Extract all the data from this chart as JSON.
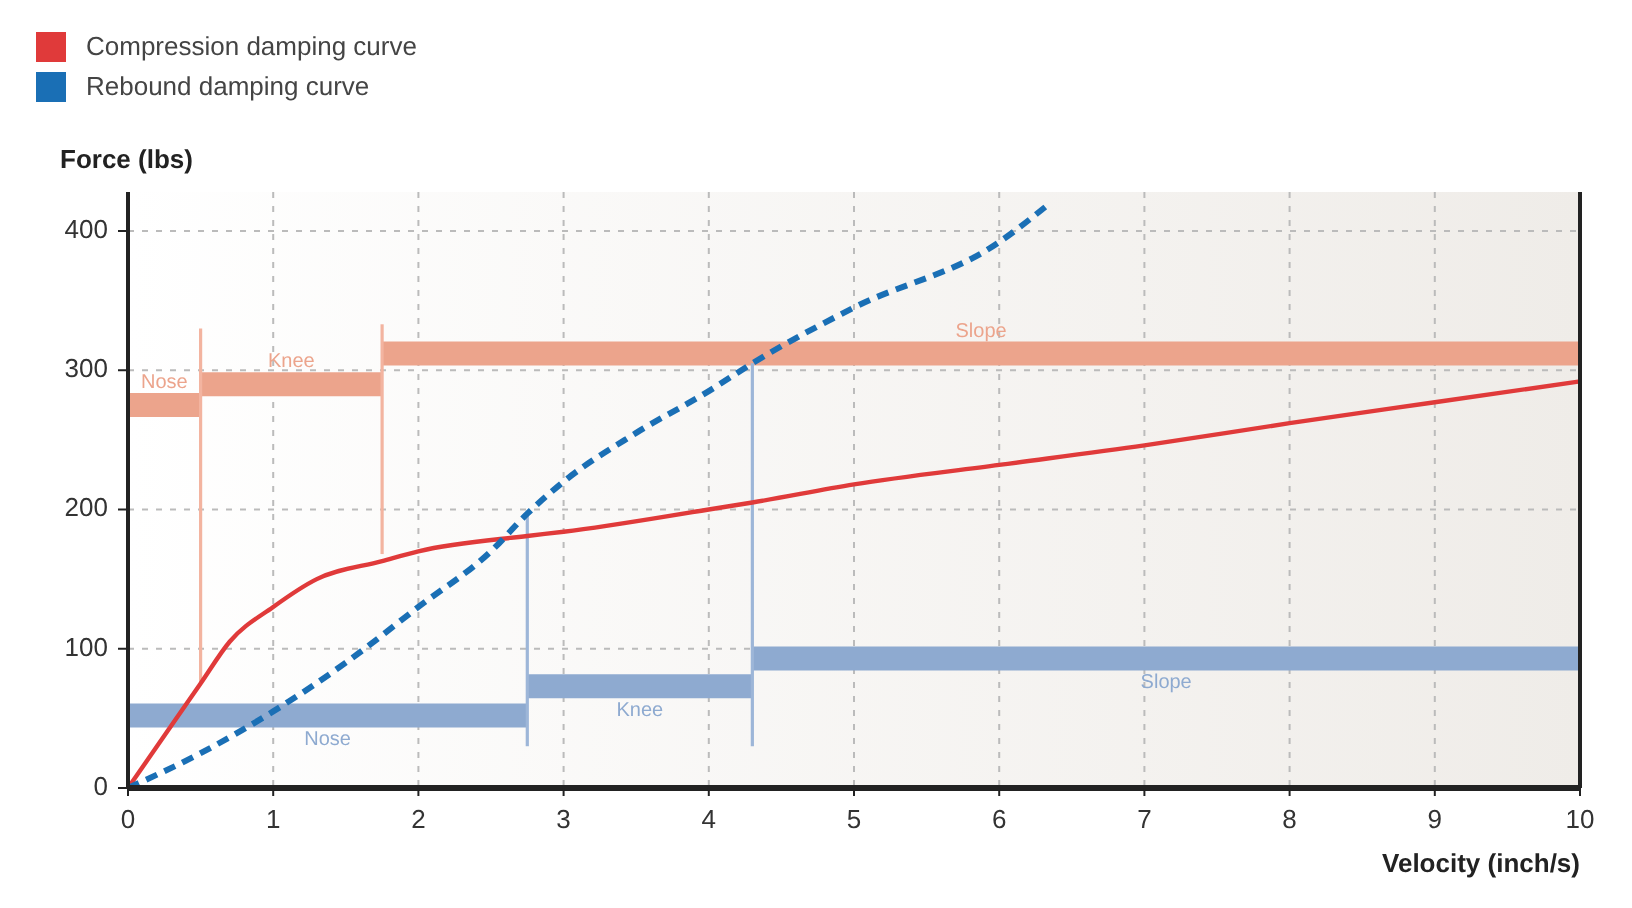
{
  "chart_data": {
    "type": "line",
    "xlabel": "Velocity (inch/s)",
    "ylabel": "Force (lbs)",
    "xlim": [
      0,
      10
    ],
    "ylim": [
      0,
      428
    ],
    "xticks": [
      0,
      1,
      2,
      3,
      4,
      5,
      6,
      7,
      8,
      9,
      10
    ],
    "yticks": [
      0,
      100,
      200,
      300,
      400
    ],
    "grid": true,
    "legend": "top left",
    "marker": "none",
    "series": [
      {
        "name": "Compression damping curve",
        "color": "#e03a3a",
        "line_style": "solid",
        "x": [
          0,
          0.3,
          0.5,
          0.7,
          1,
          1.3,
          1.75,
          2,
          2.75,
          3,
          4,
          4.3,
          5,
          6,
          7,
          8,
          9,
          10
        ],
        "values": [
          0,
          45,
          75,
          105,
          130,
          150,
          163,
          170,
          181,
          184,
          200,
          205,
          218,
          232,
          246,
          262,
          277,
          292
        ]
      },
      {
        "name": "Rebound damping curve",
        "color": "#1a6fb5",
        "line_style": "dashed",
        "x": [
          0,
          0.5,
          1,
          1.5,
          2,
          2.5,
          2.75,
          3,
          3.5,
          4,
          4.3,
          5,
          6,
          6.35
        ],
        "values": [
          0,
          25,
          55,
          90,
          130,
          170,
          197,
          220,
          255,
          285,
          305,
          345,
          392,
          420
        ]
      },
      {
        "type": "step",
        "name": "Nose",
        "color": "#eca48c",
        "x": [
          0,
          0.5
        ],
        "values": [
          275,
          275
        ]
      },
      {
        "type": "step",
        "name": "Knee",
        "color": "#eca48c",
        "x": [
          0.5,
          1.75
        ],
        "values": [
          290,
          290
        ]
      },
      {
        "type": "step",
        "name": "Slope",
        "color": "#eca48c",
        "x": [
          1.75,
          10
        ],
        "values": [
          312,
          312
        ]
      },
      {
        "type": "step",
        "name": "Nose",
        "color": "#8eaad0",
        "x": [
          0,
          2.75
        ],
        "values": [
          52,
          52
        ]
      },
      {
        "type": "step",
        "name": "Knee",
        "color": "#8eaad0",
        "x": [
          2.75,
          4.3
        ],
        "values": [
          73,
          73
        ]
      },
      {
        "type": "step",
        "name": "Slope",
        "color": "#8eaad0",
        "x": [
          4.3,
          10
        ],
        "values": [
          93,
          93
        ]
      },
      {
        "color": "#f3b4a0",
        "x": [
          0.5,
          0.5
        ],
        "values": [
          330,
          75
        ]
      },
      {
        "color": "#f3b4a0",
        "x": [
          1.75,
          1.75
        ],
        "values": [
          333,
          168
        ]
      },
      {
        "color": "#9db6d8",
        "x": [
          2.75,
          2.75
        ],
        "values": [
          197,
          30
        ]
      },
      {
        "color": "#9db6d8",
        "x": [
          4.3,
          4.3
        ],
        "values": [
          305,
          30
        ]
      }
    ]
  }
}
